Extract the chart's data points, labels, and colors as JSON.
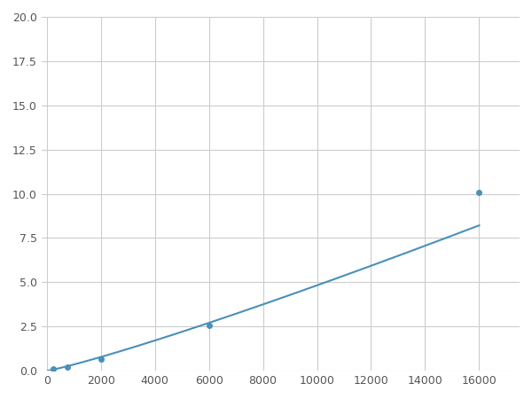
{
  "x": [
    250,
    750,
    2000,
    6000,
    16000
  ],
  "y": [
    0.1,
    0.2,
    0.65,
    2.55,
    10.1
  ],
  "line_color": "#4a90b8",
  "marker_color": "#4a90b8",
  "marker_size": 4,
  "xlim": [
    -200,
    17500
  ],
  "ylim": [
    0,
    20
  ],
  "xticks": [
    0,
    2000,
    4000,
    6000,
    8000,
    10000,
    12000,
    14000,
    16000
  ],
  "yticks": [
    0.0,
    2.5,
    5.0,
    7.5,
    10.0,
    12.5,
    15.0,
    17.5,
    20.0
  ],
  "grid_color": "#cccccc",
  "background_color": "#ffffff",
  "fig_width": 6.0,
  "fig_height": 4.5
}
